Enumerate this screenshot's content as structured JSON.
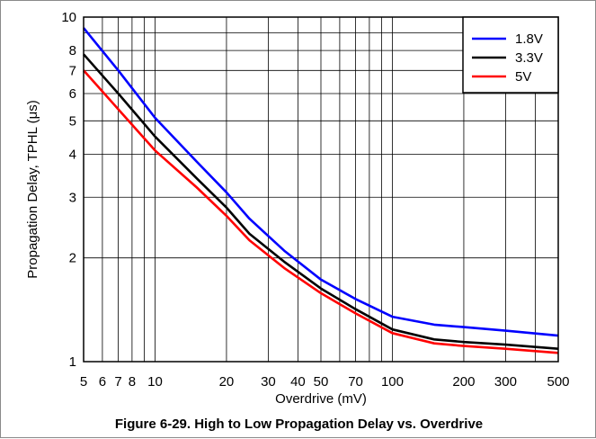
{
  "chart_data": {
    "type": "line",
    "caption": "Figure 6-29. High to Low Propagation Delay vs. Overdrive",
    "xlabel": "Overdrive (mV)",
    "ylabel": "Propagation Delay, TPHL (μs)",
    "x_scale": "log",
    "y_scale": "log",
    "xlim": [
      5,
      500
    ],
    "ylim": [
      1,
      10
    ],
    "x_ticks": [
      5,
      6,
      7,
      8,
      10,
      20,
      30,
      40,
      50,
      70,
      100,
      200,
      300,
      500
    ],
    "x_tick_labels": [
      "5",
      "6",
      "7",
      "8",
      "10",
      "20",
      "30",
      "40",
      "50",
      "70",
      "100",
      "200",
      "300",
      "500"
    ],
    "y_ticks": [
      1,
      2,
      3,
      4,
      5,
      6,
      7,
      8,
      10
    ],
    "y_tick_labels": [
      "1",
      "2",
      "3",
      "4",
      "5",
      "6",
      "7",
      "8",
      "10"
    ],
    "grid": true,
    "legend_position": "top-right",
    "series": [
      {
        "name": "1.8V",
        "color": "#0000ff",
        "points": [
          [
            5,
            9.3
          ],
          [
            7,
            7.0
          ],
          [
            10,
            5.1
          ],
          [
            15,
            3.8
          ],
          [
            20,
            3.1
          ],
          [
            25,
            2.6
          ],
          [
            35,
            2.1
          ],
          [
            50,
            1.73
          ],
          [
            70,
            1.52
          ],
          [
            100,
            1.35
          ],
          [
            150,
            1.28
          ],
          [
            200,
            1.26
          ],
          [
            300,
            1.23
          ],
          [
            500,
            1.19
          ]
        ]
      },
      {
        "name": "3.3V",
        "color": "#000000",
        "points": [
          [
            5,
            7.8
          ],
          [
            7,
            6.0
          ],
          [
            10,
            4.5
          ],
          [
            15,
            3.4
          ],
          [
            20,
            2.8
          ],
          [
            25,
            2.35
          ],
          [
            35,
            1.95
          ],
          [
            50,
            1.63
          ],
          [
            70,
            1.42
          ],
          [
            100,
            1.24
          ],
          [
            150,
            1.16
          ],
          [
            200,
            1.14
          ],
          [
            300,
            1.12
          ],
          [
            500,
            1.09
          ]
        ]
      },
      {
        "name": "5V",
        "color": "#ff0000",
        "points": [
          [
            5,
            7.0
          ],
          [
            7,
            5.4
          ],
          [
            10,
            4.1
          ],
          [
            15,
            3.2
          ],
          [
            20,
            2.65
          ],
          [
            25,
            2.25
          ],
          [
            35,
            1.87
          ],
          [
            50,
            1.58
          ],
          [
            70,
            1.38
          ],
          [
            100,
            1.21
          ],
          [
            150,
            1.13
          ],
          [
            200,
            1.11
          ],
          [
            300,
            1.09
          ],
          [
            500,
            1.06
          ]
        ]
      }
    ]
  }
}
